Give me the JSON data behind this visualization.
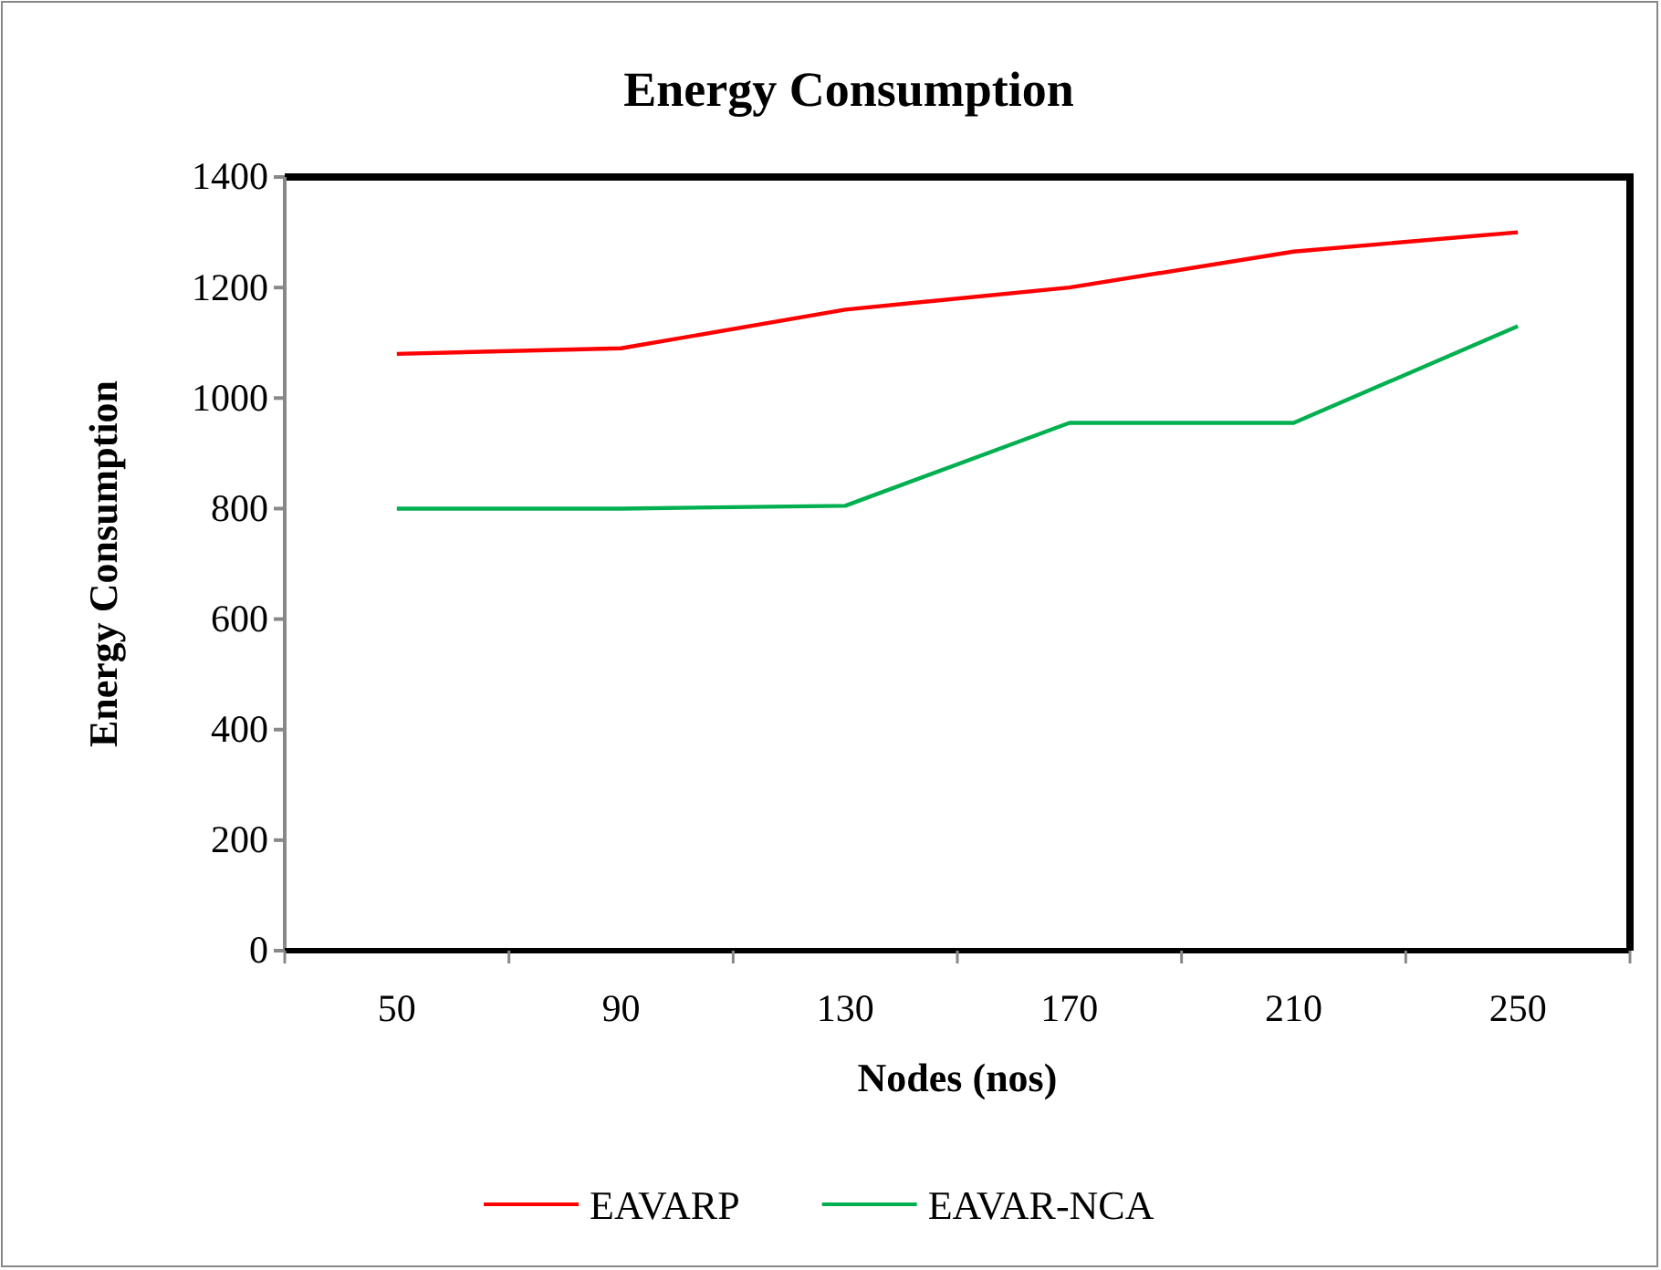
{
  "chart_data": {
    "type": "line",
    "title": "Energy Consumption",
    "xlabel": "Nodes (nos)",
    "ylabel": "Energy Consumption",
    "categories": [
      "50",
      "90",
      "130",
      "170",
      "210",
      "250"
    ],
    "series": [
      {
        "name": "EAVARP",
        "color": "#ff0000",
        "values": [
          1080,
          1090,
          1160,
          1200,
          1265,
          1300
        ]
      },
      {
        "name": "EAVAR-NCA",
        "color": "#00b050",
        "values": [
          800,
          800,
          805,
          955,
          955,
          1130
        ]
      }
    ],
    "ylim": [
      0,
      1400
    ],
    "yticks": [
      0,
      200,
      400,
      600,
      800,
      1000,
      1200,
      1400
    ],
    "grid": false,
    "legend": "bottom"
  }
}
